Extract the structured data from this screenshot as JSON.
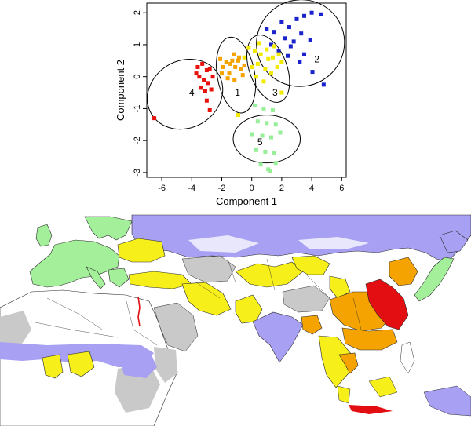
{
  "chart_data": [
    {
      "type": "scatter",
      "xlabel": "Component 1",
      "ylabel": "Component 2",
      "xlim": [
        -7,
        6.3
      ],
      "ylim": [
        -3.15,
        2.3
      ],
      "xticks": [
        "-6",
        "-4",
        "-2",
        "0",
        "2",
        "4",
        "6"
      ],
      "yticks": [
        "-3",
        "-2",
        "-1",
        "0",
        "1",
        "2"
      ],
      "grid": false,
      "legend": "none",
      "clusters": [
        {
          "label": "1",
          "color": "#f5a300",
          "label_pos": [
            -0.95,
            -0.5
          ],
          "ellipse": {
            "cx": -1.05,
            "cy": 0.05,
            "rx": 1.25,
            "ry": 1.2,
            "angle": 10
          },
          "points": [
            [
              -2.1,
              0.55
            ],
            [
              -1.9,
              0.3
            ],
            [
              -1.7,
              0.45
            ],
            [
              -1.5,
              0.1
            ],
            [
              -1.3,
              0.5
            ],
            [
              -1.1,
              0.3
            ],
            [
              -0.9,
              0.5
            ],
            [
              -0.7,
              0.25
            ],
            [
              -1.6,
              -0.05
            ],
            [
              -0.85,
              0.6
            ],
            [
              -1.45,
              0.4
            ],
            [
              -0.6,
              0.05
            ],
            [
              -1.2,
              0.7
            ],
            [
              -0.5,
              0.35
            ],
            [
              -1.15,
              -0.1
            ],
            [
              -2.0,
              0.1
            ]
          ]
        },
        {
          "label": "2",
          "color": "#1a22cc",
          "label_pos": [
            4.35,
            0.55
          ],
          "ellipse": {
            "cx": 3.25,
            "cy": 1.05,
            "rx": 2.95,
            "ry": 1.35,
            "angle": 25
          },
          "points": [
            [
              1.0,
              1.5
            ],
            [
              1.5,
              1.4
            ],
            [
              2.0,
              1.7
            ],
            [
              2.5,
              1.55
            ],
            [
              3.0,
              1.8
            ],
            [
              3.5,
              1.9
            ],
            [
              4.0,
              2.0
            ],
            [
              4.6,
              1.95
            ],
            [
              2.2,
              1.2
            ],
            [
              2.8,
              1.1
            ],
            [
              3.3,
              1.35
            ],
            [
              3.9,
              1.15
            ],
            [
              1.8,
              0.8
            ],
            [
              2.4,
              0.65
            ],
            [
              3.2,
              0.45
            ],
            [
              4.05,
              0.15
            ],
            [
              4.8,
              -0.25
            ],
            [
              2.6,
              0.95
            ],
            [
              3.5,
              0.7
            ],
            [
              1.3,
              1.0
            ]
          ]
        },
        {
          "label": "3",
          "color": "#f2ea00",
          "label_pos": [
            1.55,
            -0.5
          ],
          "ellipse": {
            "cx": 1.1,
            "cy": 0.25,
            "rx": 1.25,
            "ry": 1.1,
            "angle": 20
          },
          "points": [
            [
              -0.2,
              0.9
            ],
            [
              0.2,
              0.8
            ],
            [
              0.6,
              0.7
            ],
            [
              1.0,
              0.85
            ],
            [
              1.4,
              0.6
            ],
            [
              1.8,
              0.7
            ],
            [
              0.0,
              0.3
            ],
            [
              0.4,
              0.4
            ],
            [
              0.9,
              0.25
            ],
            [
              1.3,
              0.1
            ],
            [
              1.7,
              0.3
            ],
            [
              0.3,
              0.0
            ],
            [
              0.8,
              -0.15
            ],
            [
              -0.5,
              0.6
            ],
            [
              1.1,
              0.55
            ],
            [
              2.0,
              0.45
            ],
            [
              0.5,
              1.05
            ],
            [
              1.5,
              0.95
            ],
            [
              2.0,
              -0.5
            ],
            [
              -0.9,
              -1.2
            ]
          ]
        },
        {
          "label": "4",
          "color": "#e8120c",
          "label_pos": [
            -4.0,
            -0.5
          ],
          "ellipse": {
            "cx": -4.45,
            "cy": -0.55,
            "rx": 2.6,
            "ry": 1.05,
            "angle": 30
          },
          "points": [
            [
              -3.6,
              0.3
            ],
            [
              -3.3,
              0.4
            ],
            [
              -3.0,
              0.2
            ],
            [
              -2.8,
              0.25
            ],
            [
              -3.5,
              0.0
            ],
            [
              -3.2,
              -0.1
            ],
            [
              -2.9,
              -0.2
            ],
            [
              -3.4,
              -0.35
            ],
            [
              -3.1,
              -0.45
            ],
            [
              -2.7,
              -0.4
            ],
            [
              -3.0,
              -0.75
            ],
            [
              -2.8,
              -1.05
            ],
            [
              -6.5,
              -1.3
            ],
            [
              -3.7,
              0.1
            ],
            [
              -2.6,
              0.0
            ]
          ]
        },
        {
          "label": "5",
          "color": "#99ee99",
          "label_pos": [
            0.55,
            -2.05
          ],
          "ellipse": {
            "cx": 1.0,
            "cy": -1.95,
            "rx": 1.6,
            "ry": 1.05,
            "angle": 90
          },
          "points": [
            [
              0.2,
              -0.9
            ],
            [
              0.8,
              -1.0
            ],
            [
              1.4,
              -1.05
            ],
            [
              0.4,
              -1.4
            ],
            [
              1.0,
              -1.45
            ],
            [
              1.6,
              -1.5
            ],
            [
              0.0,
              -1.8
            ],
            [
              0.7,
              -1.85
            ],
            [
              1.3,
              -1.9
            ],
            [
              1.9,
              -1.75
            ],
            [
              0.3,
              -2.3
            ],
            [
              0.9,
              -2.35
            ],
            [
              1.5,
              -2.4
            ],
            [
              0.6,
              -2.75
            ],
            [
              1.1,
              -2.9
            ],
            [
              1.6,
              -2.7
            ],
            [
              1.2,
              -2.95
            ]
          ]
        }
      ]
    },
    {
      "type": "map",
      "region": "Europe, Africa and Asia",
      "colors": {
        "cluster_1": "#f5a300",
        "cluster_2": "#a8a0f2",
        "cluster_3": "#f7ef1a",
        "cluster_4": "#e20e12",
        "cluster_5": "#a3ef9a",
        "no_data": "#c9c9c9",
        "land": "#ffffff",
        "border": "#2a2a2a"
      }
    }
  ]
}
